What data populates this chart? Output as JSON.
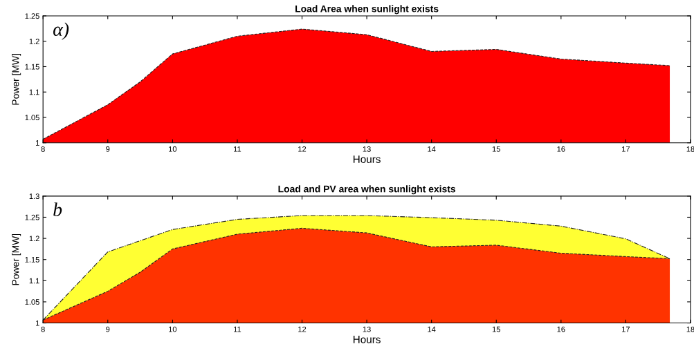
{
  "chart_data": [
    {
      "type": "area",
      "title": "Load Area when sunlight exists",
      "xlabel": "Hours",
      "ylabel": "Power [MW]",
      "annotations": [
        "α)"
      ],
      "x": [
        8,
        9,
        9.5,
        10,
        11,
        12,
        13,
        14,
        15,
        16,
        17,
        17.68
      ],
      "series": [
        {
          "color": "#ff0000",
          "line_style": "dashed",
          "values": [
            1.007,
            1.075,
            1.12,
            1.175,
            1.21,
            1.224,
            1.213,
            1.18,
            1.184,
            1.165,
            1.157,
            1.152
          ]
        }
      ],
      "xlim": [
        8,
        18
      ],
      "xticks": [
        8,
        9,
        10,
        11,
        12,
        13,
        14,
        15,
        16,
        17,
        18
      ],
      "ylim": [
        1,
        1.25
      ],
      "yticks": [
        1,
        1.05,
        1.1,
        1.15,
        1.2,
        1.25
      ],
      "grid": false
    },
    {
      "type": "area",
      "title": "Load and PV area when sunlight exists",
      "xlabel": "Hours",
      "ylabel": "Power [MW]",
      "annotations": [
        "b"
      ],
      "x": [
        8,
        9,
        9.5,
        10,
        11,
        12,
        13,
        14,
        15,
        16,
        17,
        17.68
      ],
      "series": [
        {
          "color": "#ffff33",
          "line_style": "dashdot",
          "values": [
            1.007,
            1.168,
            null,
            1.221,
            1.245,
            1.254,
            1.254,
            1.249,
            1.243,
            1.229,
            1.199,
            1.152
          ]
        },
        {
          "color": "#ff3300",
          "line_style": "dashed",
          "values": [
            1.007,
            1.075,
            1.12,
            1.175,
            1.21,
            1.224,
            1.213,
            1.18,
            1.184,
            1.165,
            1.157,
            1.152
          ]
        }
      ],
      "xlim": [
        8,
        18
      ],
      "xticks": [
        8,
        9,
        10,
        11,
        12,
        13,
        14,
        15,
        16,
        17,
        18
      ],
      "ylim": [
        1,
        1.3
      ],
      "yticks": [
        1,
        1.05,
        1.1,
        1.15,
        1.2,
        1.25,
        1.3
      ],
      "grid": false
    }
  ]
}
